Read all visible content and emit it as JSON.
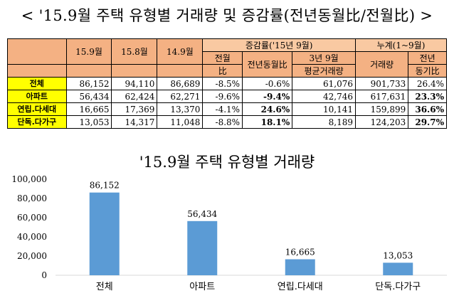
{
  "page_title": "< '15.9월 주택 유형별 거래량 및 증감률(전년동월比/전월比) >",
  "table": {
    "col_headers": [
      "15.9월",
      "15.8월",
      "14.9월"
    ],
    "group_change": "증감률('15년 9월)",
    "group_cumulative": "누계(1~9월)",
    "sub_mom_line1": "전월",
    "sub_mom_line2": "比",
    "sub_yoy": "전년동월比",
    "sub_3yr_line1": "3년 9월",
    "sub_3yr_line2": "평균거래량",
    "sub_cum_volume": "거래량",
    "sub_cum_yoy_line1": "전년",
    "sub_cum_yoy_line2": "동기比",
    "rows": [
      {
        "label": "전체",
        "v159": "86,152",
        "v158": "94,110",
        "v149": "86,689",
        "mom": "-8.5%",
        "yoy": "-0.6%",
        "avg3": "61,076",
        "cum": "901,733",
        "cum_yoy": "26.4%",
        "yoy_bold": false,
        "cum_yoy_bold": false
      },
      {
        "label": "아파트",
        "v159": "56,434",
        "v158": "62,424",
        "v149": "62,271",
        "mom": "-9.6%",
        "yoy": "-9.4%",
        "avg3": "42,746",
        "cum": "617,631",
        "cum_yoy": "23.3%",
        "yoy_bold": true,
        "cum_yoy_bold": true
      },
      {
        "label": "연립.다세대",
        "v159": "16,665",
        "v158": "17,369",
        "v149": "13,370",
        "mom": "-4.1%",
        "yoy": "24.6%",
        "avg3": "10,141",
        "cum": "159,899",
        "cum_yoy": "36.6%",
        "yoy_bold": true,
        "cum_yoy_bold": true
      },
      {
        "label": "단독.다가구",
        "v159": "13,053",
        "v158": "14,317",
        "v149": "11,048",
        "mom": "-8.8%",
        "yoy": "18.1%",
        "avg3": "8,189",
        "cum": "124,203",
        "cum_yoy": "29.7%",
        "yoy_bold": true,
        "cum_yoy_bold": true
      }
    ]
  },
  "colors": {
    "header_fill": "#f4b183",
    "row_label_fill": "#ffff00",
    "bar_fill": "#5b9bd5"
  },
  "chart_data": {
    "type": "bar",
    "title": "'15.9월 주택 유형별 거래량",
    "categories": [
      "전체",
      "아파트",
      "연립.다세대",
      "단독.다가구"
    ],
    "values": [
      86152,
      56434,
      16665,
      13053
    ],
    "data_labels": [
      "86,152",
      "56,434",
      "16,665",
      "13,053"
    ],
    "ylim": [
      0,
      100000
    ],
    "yticks": [
      0,
      20000,
      40000,
      60000,
      80000,
      100000
    ],
    "ytick_labels": [
      "0",
      "20,000",
      "40,000",
      "60,000",
      "80,000",
      "100,000"
    ],
    "grid": false,
    "legend": "none"
  }
}
